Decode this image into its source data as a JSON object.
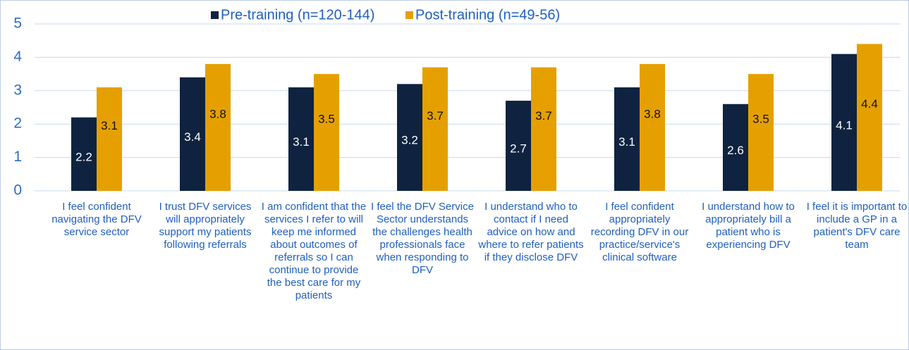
{
  "chart_data": {
    "type": "bar",
    "categories": [
      "I feel confident navigating the DFV service sector",
      "I trust DFV services will appropriately support my patients following referrals",
      "I am confident that the services I refer to will keep me informed about outcomes of referrals so I can continue to provide the best care for my patients",
      "I feel the DFV Service Sector understands the challenges health professionals face when responding to DFV",
      "I understand who to contact if I need advice on how and where to refer patients if they disclose DFV",
      "I feel confident appropriately recording DFV in our practice/service's clinical software",
      "I understand how to appropriately bill a patient who is experiencing DFV",
      "I feel it is important to include a GP in a patient's DFV care team"
    ],
    "series": [
      {
        "name": "Pre-training (n=120-144)",
        "color": "#0f2340",
        "values": [
          2.2,
          3.4,
          3.1,
          3.2,
          2.7,
          3.1,
          2.6,
          4.1
        ]
      },
      {
        "name": "Post-training (n=49-56)",
        "color": "#e5a000",
        "values": [
          3.1,
          3.8,
          3.5,
          3.7,
          3.7,
          3.8,
          3.5,
          4.4
        ]
      }
    ],
    "ylim": [
      0,
      5
    ],
    "yticks": [
      0,
      1,
      2,
      3,
      4,
      5
    ],
    "grid": true
  }
}
